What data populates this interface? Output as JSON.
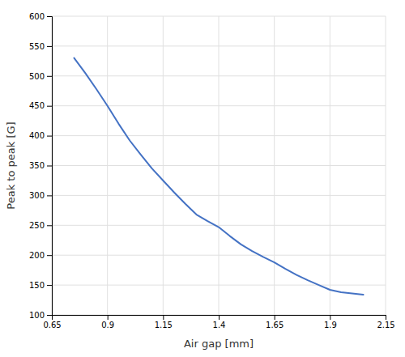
{
  "chart_data": {
    "type": "line",
    "xlabel": "Air gap [mm]",
    "ylabel": "Peak to peak [G]",
    "x": [
      0.75,
      0.8,
      0.85,
      0.9,
      0.95,
      1.0,
      1.05,
      1.1,
      1.15,
      1.2,
      1.25,
      1.3,
      1.35,
      1.4,
      1.45,
      1.5,
      1.55,
      1.6,
      1.65,
      1.7,
      1.75,
      1.8,
      1.85,
      1.9,
      1.95,
      2.0,
      2.05
    ],
    "values": [
      530,
      505,
      478,
      450,
      420,
      392,
      368,
      345,
      325,
      305,
      286,
      268,
      257,
      247,
      232,
      218,
      207,
      197,
      188,
      177,
      167,
      158,
      150,
      142,
      138,
      136,
      134
    ],
    "color": "#4472c4",
    "xlim": [
      0.65,
      2.15
    ],
    "ylim": [
      100,
      600
    ],
    "xticks": [
      0.65,
      0.9,
      1.15,
      1.4,
      1.65,
      1.9,
      2.15
    ],
    "yticks": [
      100,
      150,
      200,
      250,
      300,
      350,
      400,
      450,
      500,
      550,
      600
    ],
    "grid": true
  }
}
